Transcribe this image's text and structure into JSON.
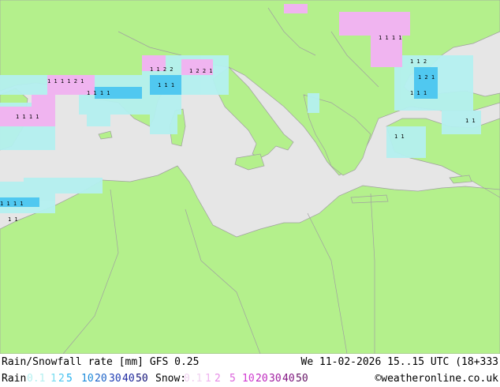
{
  "title": "Rain/Snowfall rate [mm] GFS 0.25",
  "datetime": "We 11-02-2026 15..15 UTC (18+333",
  "credit": "©weatheronline.co.uk",
  "legend": {
    "rain_label": "Rain",
    "rain_values": [
      "0.1",
      "1",
      "2",
      "5",
      "10",
      "20",
      "30",
      "40",
      "50"
    ],
    "rain_colors": [
      "#b4f0f0",
      "#78dcf0",
      "#50c8f0",
      "#28b4f0",
      "#1e8cdc",
      "#1e64c8",
      "#1e3cb4",
      "#1e28a0",
      "#141478"
    ],
    "snow_label": "Snow:",
    "snow_values": [
      "0.1",
      "1",
      "2",
      "5",
      "10",
      "20",
      "30",
      "40",
      "50"
    ],
    "snow_colors": [
      "#f0d2f0",
      "#f0b4f0",
      "#e68ce6",
      "#dc64dc",
      "#d23cd2",
      "#be28be",
      "#a01ea0",
      "#821482",
      "#641464"
    ]
  },
  "map": {
    "sea_color": "#e6e6e6",
    "land_color": "#b4f08c",
    "border_color": "#a0a0a0"
  }
}
